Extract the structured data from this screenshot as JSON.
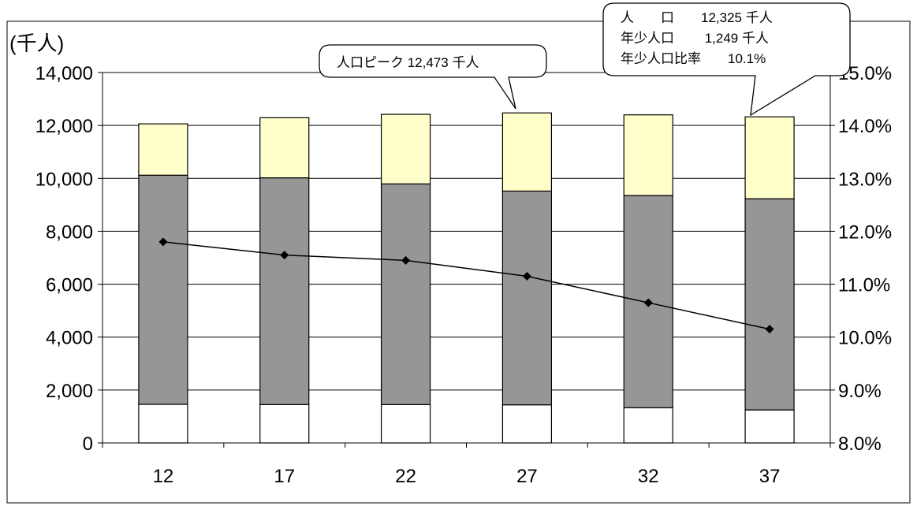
{
  "chart_data": {
    "type": "bar",
    "categories": [
      "12",
      "17",
      "22",
      "27",
      "32",
      "37"
    ],
    "stacked": true,
    "left_axis": {
      "unit_label": "(千人)",
      "ylim": [
        0,
        14000
      ],
      "ticks": [
        "0",
        "2,000",
        "4,000",
        "6,000",
        "8,000",
        "10,000",
        "12,000",
        "14,000"
      ]
    },
    "right_axis": {
      "ylim": [
        8.0,
        15.0
      ],
      "ticks": [
        "8.0%",
        "9.0%",
        "10.0%",
        "11.0%",
        "12.0%",
        "13.0%",
        "14.0%",
        "15.0%"
      ]
    },
    "series": [
      {
        "type": "bar",
        "color": "#ffffff",
        "values": [
          1460,
          1450,
          1450,
          1440,
          1330,
          1249
        ]
      },
      {
        "type": "bar",
        "color": "#969696",
        "values": [
          8660,
          8570,
          8340,
          8080,
          8020,
          7980
        ]
      },
      {
        "type": "bar",
        "color": "#ffffcc",
        "values": [
          1940,
          2270,
          2630,
          2953,
          3050,
          3096
        ]
      },
      {
        "type": "line",
        "axis": "right",
        "color": "#000000",
        "marker": "diamond",
        "values": [
          11.8,
          11.55,
          11.45,
          11.15,
          10.65,
          10.15
        ]
      }
    ],
    "annotations": [
      {
        "category": "27",
        "lines": [
          "人口ピーク 12,473 千人"
        ]
      },
      {
        "category": "37",
        "lines": [
          "人　　口　　12,325 千人",
          "年少人口　　 1,249 千人",
          "年少人口比率　　10.1%"
        ]
      }
    ],
    "grid": "horizontal",
    "legend": "none"
  }
}
